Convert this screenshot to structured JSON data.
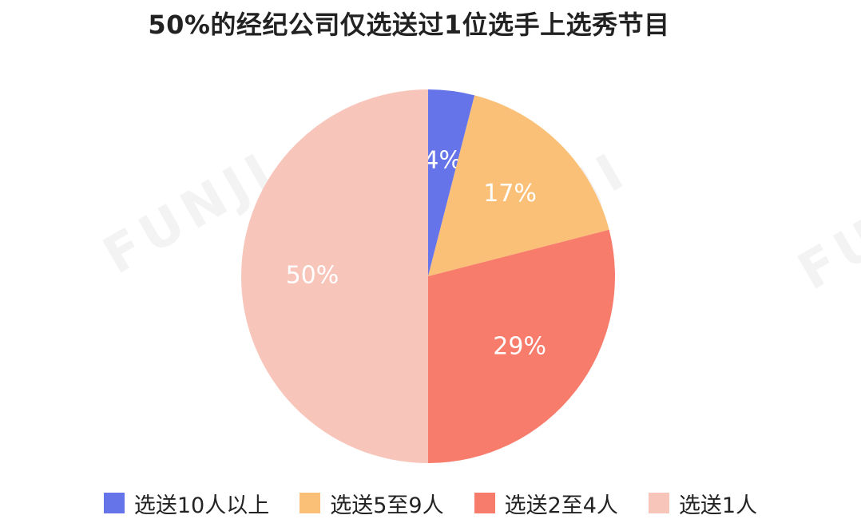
{
  "title": "50%的经纪公司仅选送过1位选手上选秀节目",
  "watermark": "FUNJI",
  "chart_data": {
    "type": "pie",
    "title": "50%的经纪公司仅选送过1位选手上选秀节目",
    "start_angle_deg": 0,
    "direction": "clockwise",
    "legend_position": "bottom",
    "slices": [
      {
        "label": "选送10人以上",
        "value": 4,
        "display": "4%",
        "color": "#6674E9"
      },
      {
        "label": "选送5至9人",
        "value": 17,
        "display": "17%",
        "color": "#FBC078"
      },
      {
        "label": "选送2至4人",
        "value": 29,
        "display": "29%",
        "color": "#F87C6B"
      },
      {
        "label": "选送1人",
        "value": 50,
        "display": "50%",
        "color": "#F8C5BA"
      }
    ]
  }
}
